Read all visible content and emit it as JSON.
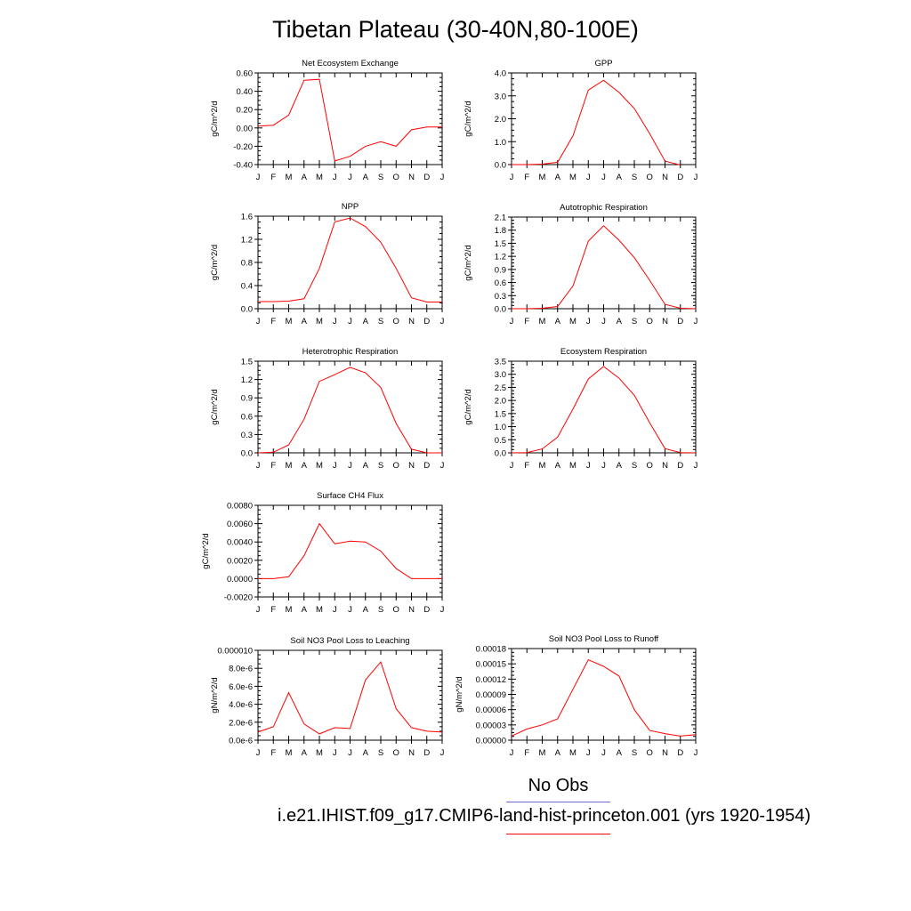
{
  "page": {
    "title": "Tibetan Plateau (30-40N,80-100E)"
  },
  "legend": {
    "obs_label": "No Obs",
    "obs_color": "#6b6bdc",
    "model_label": "i.e21.IHIST.f09_g17.CMIP6-land-hist-princeton.001 (yrs 1920-1954)",
    "model_color": "#ff0000"
  },
  "chart_data": [
    {
      "type": "line",
      "title": "Net Ecosystem Exchange",
      "ylabel": "gC/m^2/d",
      "ylim": [
        -0.4,
        0.6
      ],
      "yticks": [
        "-0.40",
        "-0.20",
        "0.00",
        "0.20",
        "0.40",
        "0.60"
      ],
      "x": [
        "J",
        "F",
        "M",
        "A",
        "M",
        "J",
        "J",
        "A",
        "S",
        "O",
        "N",
        "D",
        "J"
      ],
      "series": [
        {
          "values": [
            0.02,
            0.03,
            0.14,
            0.52,
            0.53,
            -0.36,
            -0.31,
            -0.2,
            -0.15,
            -0.2,
            -0.02,
            0.01,
            0.01
          ]
        }
      ]
    },
    {
      "type": "line",
      "title": "GPP",
      "ylabel": "gC/m^2/d",
      "ylim": [
        0,
        4.0
      ],
      "yticks": [
        "0.0",
        "1.0",
        "2.0",
        "3.0",
        "4.0"
      ],
      "x": [
        "J",
        "F",
        "M",
        "A",
        "M",
        "J",
        "J",
        "A",
        "S",
        "O",
        "N",
        "D",
        "J"
      ],
      "series": [
        {
          "values": [
            0.0,
            0.0,
            0.02,
            0.1,
            1.25,
            3.25,
            3.68,
            3.15,
            2.45,
            1.35,
            0.15,
            -0.02,
            null
          ]
        }
      ]
    },
    {
      "type": "line",
      "title": "NPP",
      "ylabel": "gC/m^2/d",
      "ylim": [
        -0.15,
        1.8
      ],
      "yticks": [
        "0.0",
        "0.4",
        "0.8",
        "1.2",
        "1.6"
      ],
      "x": [
        "J",
        "F",
        "M",
        "A",
        "M",
        "J",
        "J",
        "A",
        "S",
        "O",
        "N",
        "D",
        "J"
      ],
      "series": [
        {
          "values": [
            0.0,
            0.0,
            0.01,
            0.06,
            0.7,
            1.68,
            1.76,
            1.58,
            1.25,
            0.7,
            0.08,
            -0.01,
            -0.01
          ]
        }
      ]
    },
    {
      "type": "line",
      "title": "Autotrophic Respiration",
      "ylabel": "gC/m^2/d",
      "ylim": [
        0,
        2.1
      ],
      "yticks": [
        "0.0",
        "0.3",
        "0.6",
        "0.9",
        "1.2",
        "1.5",
        "1.8",
        "2.1"
      ],
      "x": [
        "J",
        "F",
        "M",
        "A",
        "M",
        "J",
        "J",
        "A",
        "S",
        "O",
        "N",
        "D",
        "J"
      ],
      "series": [
        {
          "values": [
            0.0,
            0.0,
            0.01,
            0.05,
            0.52,
            1.55,
            1.9,
            1.57,
            1.17,
            0.65,
            0.1,
            0.01,
            0.0
          ]
        }
      ]
    },
    {
      "type": "line",
      "title": "Heterotrophic Respiration",
      "ylabel": "gC/m^2/d",
      "ylim": [
        0,
        1.5
      ],
      "yticks": [
        "0.0",
        "0.3",
        "0.6",
        "0.9",
        "1.2",
        "1.5"
      ],
      "x": [
        "J",
        "F",
        "M",
        "A",
        "M",
        "J",
        "J",
        "A",
        "S",
        "O",
        "N",
        "D",
        "J"
      ],
      "series": [
        {
          "values": [
            0.0,
            0.01,
            0.13,
            0.55,
            1.17,
            1.28,
            1.4,
            1.31,
            1.07,
            0.48,
            0.06,
            0.0,
            0.0
          ]
        }
      ]
    },
    {
      "type": "line",
      "title": "Ecosystem Respiration",
      "ylabel": "gC/m^2/d",
      "ylim": [
        0,
        3.5
      ],
      "yticks": [
        "0.0",
        "0.5",
        "1.0",
        "1.5",
        "2.0",
        "2.5",
        "3.0",
        "3.5"
      ],
      "x": [
        "J",
        "F",
        "M",
        "A",
        "M",
        "J",
        "J",
        "A",
        "S",
        "O",
        "N",
        "D",
        "J"
      ],
      "series": [
        {
          "values": [
            0.0,
            0.01,
            0.15,
            0.6,
            1.67,
            2.82,
            3.3,
            2.85,
            2.2,
            1.15,
            0.16,
            0.01,
            0.0
          ]
        }
      ]
    },
    {
      "type": "line",
      "title": "Surface CH4 Flux",
      "ylabel": "gC/m^2/d",
      "ylim": [
        -0.002,
        0.008
      ],
      "yticks": [
        "-0.0020",
        "0.0000",
        "0.0020",
        "0.0040",
        "0.0060",
        "0.0080"
      ],
      "x": [
        "J",
        "F",
        "M",
        "A",
        "M",
        "J",
        "J",
        "A",
        "S",
        "O",
        "N",
        "D",
        "J"
      ],
      "series": [
        {
          "values": [
            0.0,
            0.0,
            0.0002,
            0.0025,
            0.006,
            0.0038,
            0.0041,
            0.004,
            0.003,
            0.0011,
            0.0,
            0.0,
            0.0
          ]
        }
      ]
    },
    {
      "type": "line",
      "title": "Soil NO3 Pool Loss to Leaching",
      "ylabel": "gN/m^2/d",
      "ylim": [
        0,
        1e-05
      ],
      "yticks": [
        "0.0e-6",
        "2.0e-6",
        "4.0e-6",
        "6.0e-6",
        "8.0e-6",
        "0.000010"
      ],
      "x": [
        "J",
        "F",
        "M",
        "A",
        "M",
        "J",
        "J",
        "A",
        "S",
        "O",
        "N",
        "D",
        "J"
      ],
      "series": [
        {
          "values": [
            9e-07,
            1.5e-06,
            5.3e-06,
            1.8e-06,
            7e-07,
            1.4e-06,
            1.3e-06,
            6.7e-06,
            8.7e-06,
            3.5e-06,
            1.4e-06,
            1e-06,
            9e-07
          ]
        }
      ]
    },
    {
      "type": "line",
      "title": "Soil NO3 Pool Loss to Runoff",
      "ylabel": "gN/m^2/d",
      "ylim": [
        0,
        0.00018
      ],
      "yticks": [
        "0.00000",
        "0.00003",
        "0.00006",
        "0.00009",
        "0.00012",
        "0.00015",
        "0.00018"
      ],
      "x": [
        "J",
        "F",
        "M",
        "A",
        "M",
        "J",
        "J",
        "A",
        "S",
        "O",
        "N",
        "D",
        "J"
      ],
      "series": [
        {
          "values": [
            8e-06,
            2.2e-05,
            3e-05,
            4.2e-05,
            0.0001,
            0.000158,
            0.000145,
            0.000126,
            6e-05,
            1.9e-05,
            1.3e-05,
            8e-06,
            1.1e-05
          ]
        }
      ]
    }
  ]
}
